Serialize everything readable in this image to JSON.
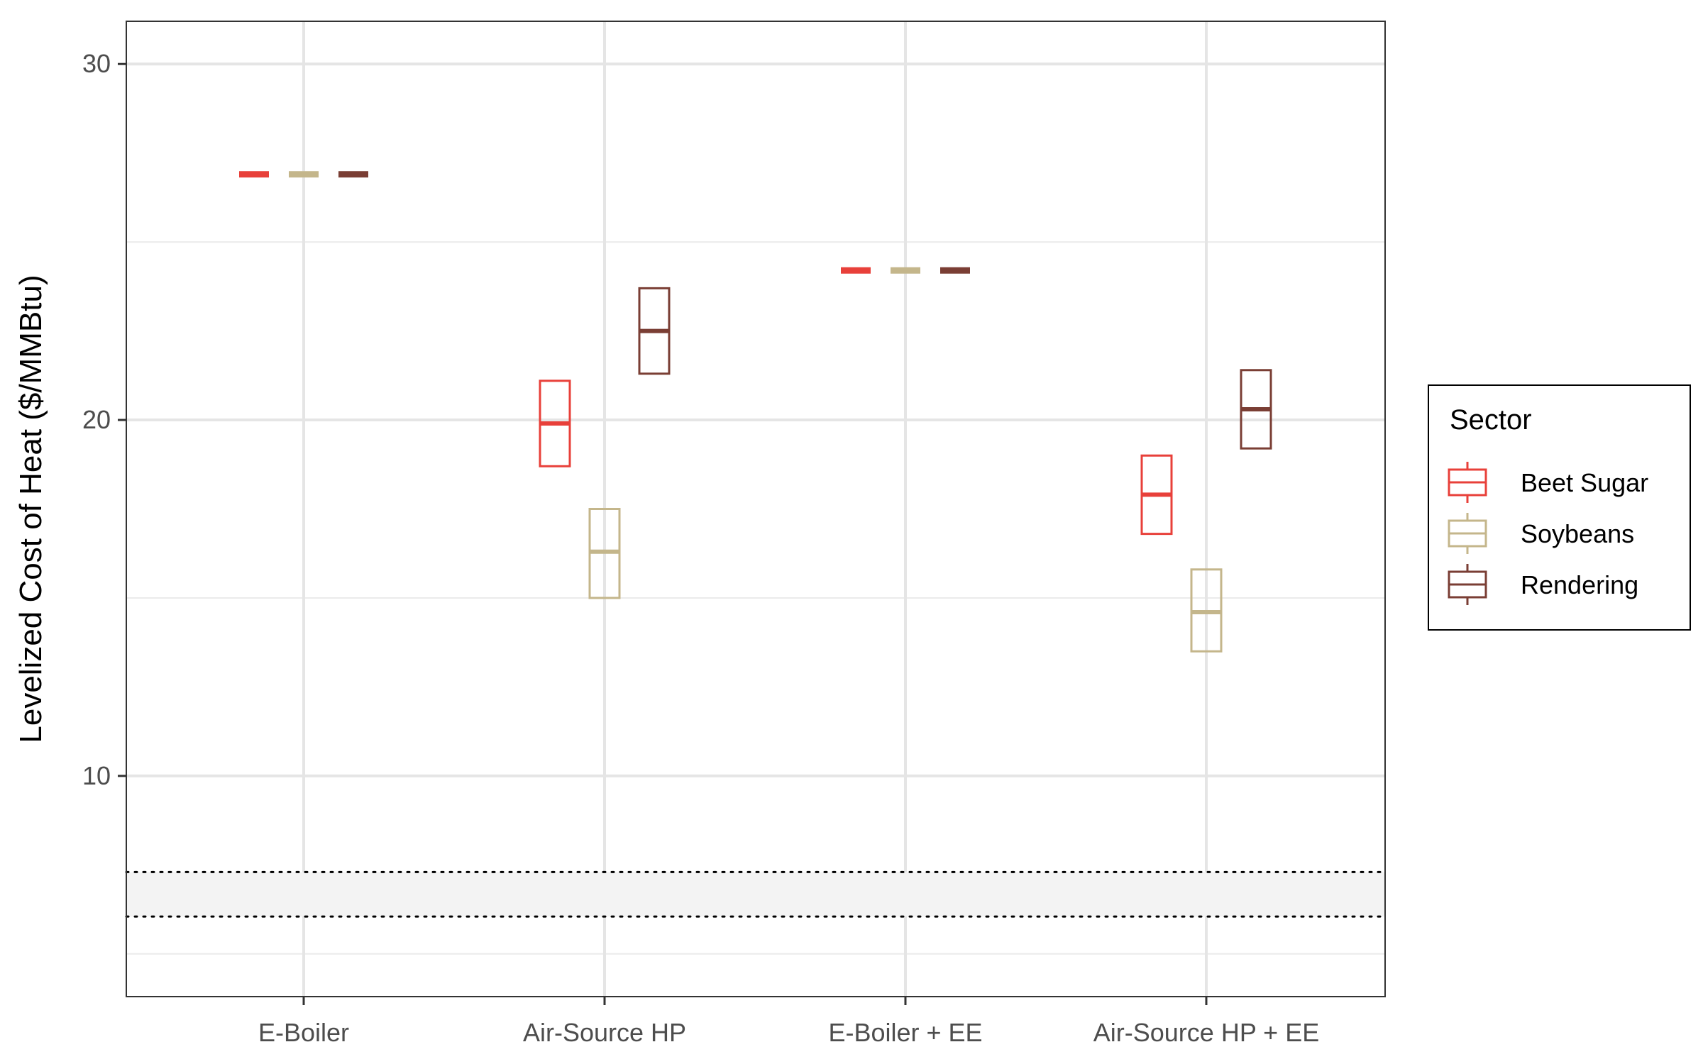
{
  "chart_data": {
    "type": "boxplot",
    "ylabel": "Levelized Cost of Heat ($/MMBtu)",
    "xlabel": "",
    "ylim": [
      3.8,
      31.2
    ],
    "yticks": [
      10,
      20,
      30
    ],
    "grid": true,
    "legend_title": "Sector",
    "legend_position": "right",
    "categories": [
      "E-Boiler",
      "Air-Source HP",
      "E-Boiler + EE",
      "Air-Source HP + EE"
    ],
    "series": [
      {
        "name": "Beet Sugar",
        "color": "#e8403a",
        "boxes": [
          {
            "low": 26.9,
            "median": 26.9,
            "high": 26.9
          },
          {
            "low": 18.7,
            "median": 19.9,
            "high": 21.1
          },
          {
            "low": 24.2,
            "median": 24.2,
            "high": 24.2
          },
          {
            "low": 16.8,
            "median": 17.9,
            "high": 19.0
          }
        ]
      },
      {
        "name": "Soybeans",
        "color": "#c4b68b",
        "boxes": [
          {
            "low": 26.9,
            "median": 26.9,
            "high": 26.9
          },
          {
            "low": 15.0,
            "median": 16.3,
            "high": 17.5
          },
          {
            "low": 24.2,
            "median": 24.2,
            "high": 24.2
          },
          {
            "low": 13.5,
            "median": 14.6,
            "high": 15.8
          }
        ]
      },
      {
        "name": "Rendering",
        "color": "#7a3e34",
        "boxes": [
          {
            "low": 26.9,
            "median": 26.9,
            "high": 26.9
          },
          {
            "low": 21.3,
            "median": 22.5,
            "high": 23.7
          },
          {
            "low": 24.2,
            "median": 24.2,
            "high": 24.2
          },
          {
            "low": 19.2,
            "median": 20.3,
            "high": 21.4
          }
        ]
      }
    ],
    "reference_band": {
      "low": 6.05,
      "high": 7.3,
      "fill": "#f3f3f3",
      "line_style": "dotted"
    }
  }
}
